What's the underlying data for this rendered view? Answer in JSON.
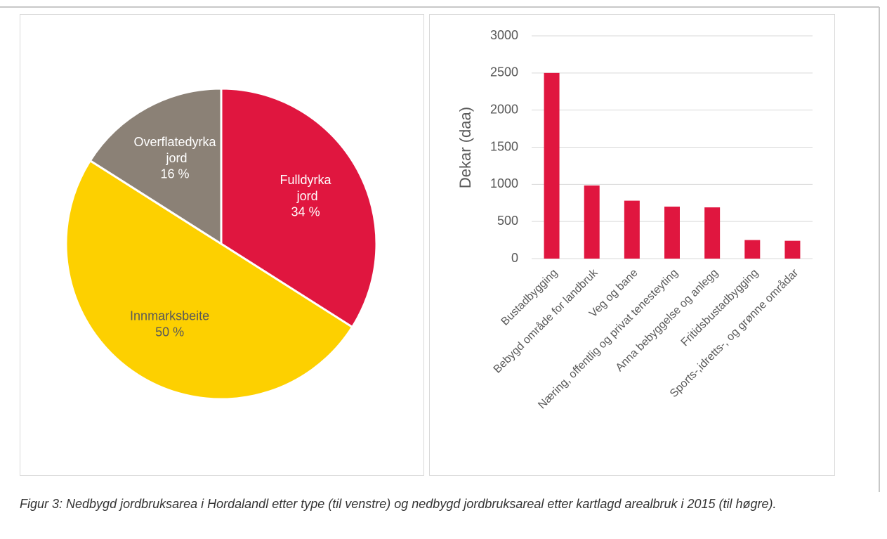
{
  "chart_data": [
    {
      "type": "pie",
      "categories": [
        "Fulldyrka jord",
        "Innmarksbeite",
        "Overflatedyrka jord"
      ],
      "values": [
        34,
        50,
        16
      ],
      "value_labels": [
        "34 %",
        "50 %",
        "16 %"
      ],
      "colors": [
        "#e0163f",
        "#fdd000",
        "#8b8176"
      ],
      "label_colors": [
        "#ffffff",
        "#595959",
        "#ffffff"
      ]
    },
    {
      "type": "bar",
      "ylabel": "Dekar (daa)",
      "categories": [
        "Bustadbygging",
        "Bebygd område for landbruk",
        "Veg og bane",
        "Næring, offentlig og privat tenesteyting",
        "Anna bebyggelse og anlegg",
        "Fritidsbustadbygging",
        "Sports-,idretts-, og grønne områdar"
      ],
      "values": [
        2500,
        985,
        780,
        700,
        690,
        250,
        240
      ],
      "color": "#e0163f",
      "ylim": [
        0,
        3000
      ],
      "yticks": [
        0,
        500,
        1000,
        1500,
        2000,
        2500,
        3000
      ],
      "grid": true
    }
  ],
  "caption": "Figur 3: Nedbygd jordbruksarea i Hordalandl etter type (til venstre) og nedbygd jordbruksareal etter kartlagd arealbruk i 2015 (til høgre)."
}
